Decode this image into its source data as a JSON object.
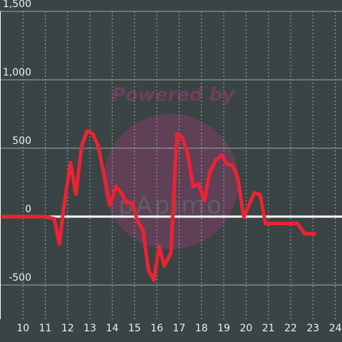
{
  "chart_data": {
    "type": "line",
    "watermark": {
      "title": "Powered by",
      "logo": "pApimo"
    },
    "x": [
      9.0,
      11.0,
      11.4,
      11.63,
      11.83,
      12.13,
      12.37,
      12.63,
      12.87,
      13.13,
      13.37,
      13.63,
      13.9,
      14.17,
      14.4,
      14.63,
      14.9,
      15.13,
      15.37,
      15.63,
      15.87,
      16.1,
      16.33,
      16.63,
      16.9,
      17.13,
      17.37,
      17.63,
      17.87,
      18.13,
      18.37,
      18.63,
      18.9,
      19.13,
      19.4,
      19.63,
      19.9,
      20.13,
      20.37,
      20.63,
      20.87,
      22.3,
      22.63,
      23.13
    ],
    "series": [
      {
        "color": "#ee2233",
        "values": [
          0,
          0,
          -15,
          -200,
          70,
          395,
          165,
          515,
          625,
          605,
          515,
          305,
          85,
          220,
          175,
          100,
          100,
          -30,
          -95,
          -395,
          -465,
          -215,
          -360,
          -265,
          605,
          580,
          465,
          220,
          240,
          115,
          325,
          410,
          450,
          385,
          375,
          280,
          -5,
          85,
          175,
          160,
          -50,
          -50,
          -125,
          -125
        ]
      }
    ],
    "xlim": [
      8.97,
      24.3
    ],
    "xticks": [
      10,
      11,
      12,
      13,
      14,
      15,
      16,
      17,
      18,
      19,
      20,
      21,
      22,
      23,
      24
    ],
    "ylim": [
      -750,
      1500
    ],
    "yticks": [
      {
        "value": -500,
        "label": "-500"
      },
      0,
      500,
      {
        "value": 1000,
        "label": "1,000"
      },
      {
        "value": 1500,
        "label": "1,500"
      }
    ],
    "grid": true
  }
}
